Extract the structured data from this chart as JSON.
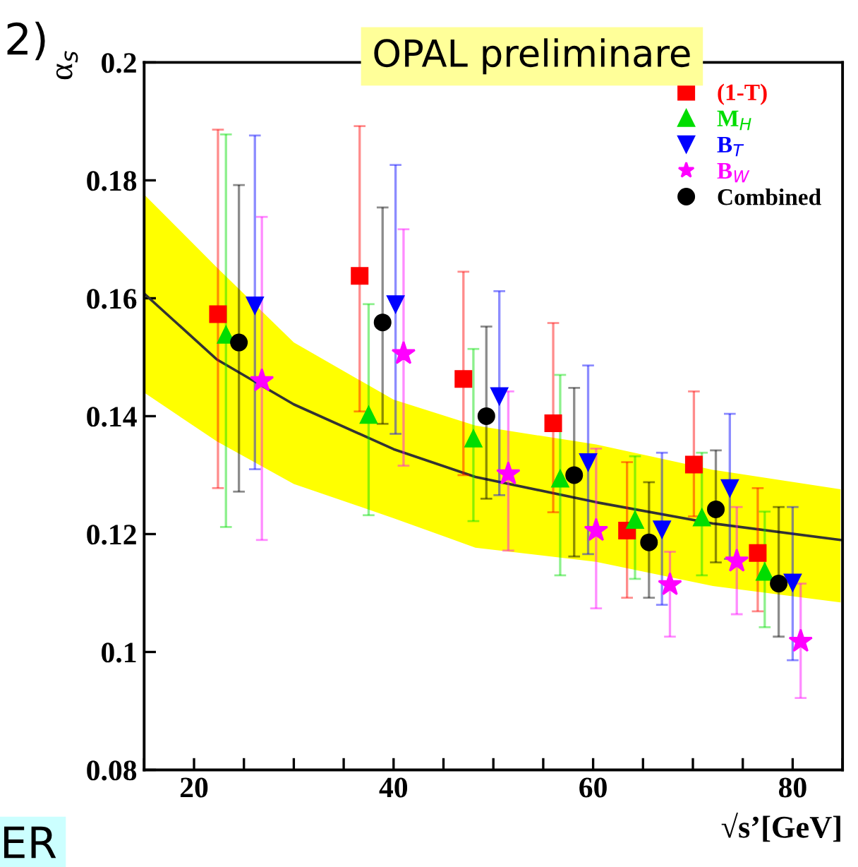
{
  "chart_data": {
    "type": "scatter",
    "title": "OPAL preliminare",
    "xlabel": "√s’[GeV]",
    "ylabel": "α$_{s}$",
    "annotations": [
      "2)",
      "ER"
    ],
    "xlim": [
      15,
      85
    ],
    "ylim": [
      0.08,
      0.2
    ],
    "xticks": [
      {
        "value": 15,
        "label": null
      },
      20,
      {
        "value": 25,
        "label": null
      },
      {
        "value": 30,
        "label": null
      },
      {
        "value": 35,
        "label": null
      },
      40,
      {
        "value": 45,
        "label": null
      },
      {
        "value": 50,
        "label": null
      },
      {
        "value": 55,
        "label": null
      },
      60,
      {
        "value": 65,
        "label": null
      },
      {
        "value": 70,
        "label": null
      },
      {
        "value": 75,
        "label": null
      },
      80,
      {
        "value": 85,
        "label": null
      }
    ],
    "yticks": [
      0.08,
      0.1,
      0.12,
      0.14,
      0.16,
      0.18,
      0.2
    ],
    "grid": false,
    "legend": "top right",
    "series": [
      {
        "type": "line",
        "color": "#333333",
        "marker": "none",
        "x": [
          15,
          22.3,
          30,
          40,
          48.2,
          60.3,
          72,
          84.8
        ],
        "values": [
          0.1608,
          0.1496,
          0.142,
          0.1344,
          0.1297,
          0.1254,
          0.1218,
          0.119
        ],
        "lower": [
          0.144,
          0.1357,
          0.1285,
          0.1227,
          0.1177,
          0.1153,
          0.1112,
          0.1084
        ],
        "upper": [
          0.1776,
          0.1652,
          0.1525,
          0.1428,
          0.1384,
          0.1352,
          0.1309,
          0.1276
        ]
      },
      {
        "name": "(1-T)",
        "color": "#ff0000",
        "marker": "square",
        "x": [
          22.4,
          36.6,
          47.0,
          56.0,
          63.4,
          70.1,
          76.5
        ],
        "values": [
          0.1573,
          0.1638,
          0.1463,
          0.1388,
          0.1206,
          0.1318,
          0.1168
        ],
        "errors": [
          [
            0.1278,
            0.1886
          ],
          [
            0.1408,
            0.1892
          ],
          [
            0.13,
            0.1645
          ],
          [
            0.1237,
            0.1558
          ],
          [
            0.1092,
            0.1322
          ],
          [
            0.123,
            0.1442
          ],
          [
            0.1069,
            0.1278
          ]
        ]
      },
      {
        "name": "M$_{H}$",
        "color": "#00dd00",
        "marker": "triangle",
        "x": [
          23.2,
          37.5,
          48.0,
          56.7,
          64.2,
          70.9,
          77.2
        ],
        "values": [
          0.1538,
          0.1402,
          0.1362,
          0.1294,
          0.1224,
          0.1228,
          0.1136
        ],
        "errors": [
          [
            0.1212,
            0.1878
          ],
          [
            0.1232,
            0.159
          ],
          [
            0.1222,
            0.1514
          ],
          [
            0.113,
            0.147
          ],
          [
            0.1124,
            0.1332
          ],
          [
            0.113,
            0.1338
          ],
          [
            0.1042,
            0.1238
          ]
        ]
      },
      {
        "name": "B$_{T}$",
        "color": "#0000ff",
        "marker": "triangle_down",
        "x": [
          26.1,
          40.2,
          50.6,
          59.5,
          66.9,
          73.7,
          80.0
        ],
        "values": [
          0.1588,
          0.159,
          0.1434,
          0.1322,
          0.1208,
          0.1278,
          0.1118
        ],
        "errors": [
          [
            0.131,
            0.1876
          ],
          [
            0.137,
            0.1826
          ],
          [
            0.1266,
            0.1612
          ],
          [
            0.1166,
            0.1486
          ],
          [
            0.108,
            0.1338
          ],
          [
            0.1158,
            0.1404
          ],
          [
            0.0986,
            0.1246
          ]
        ]
      },
      {
        "name": "B$_{W}$",
        "color": "#ff00ff",
        "marker": "star",
        "x": [
          26.8,
          41.0,
          51.5,
          60.3,
          67.7,
          74.4,
          80.8
        ],
        "values": [
          0.146,
          0.1506,
          0.1302,
          0.1206,
          0.1114,
          0.1154,
          0.1018
        ],
        "errors": [
          [
            0.119,
            0.1738
          ],
          [
            0.1316,
            0.1717
          ],
          [
            0.1172,
            0.1442
          ],
          [
            0.1074,
            0.1345
          ],
          [
            0.1026,
            0.117
          ],
          [
            0.1064,
            0.1246
          ],
          [
            0.0922,
            0.1116
          ]
        ]
      },
      {
        "name": "Combined",
        "color": "#000000",
        "marker": "circle",
        "x": [
          24.5,
          38.9,
          49.3,
          58.1,
          65.6,
          72.3,
          78.6
        ],
        "values": [
          0.1525,
          0.1559,
          0.14,
          0.13,
          0.1186,
          0.1242,
          0.1116
        ],
        "errors": [
          [
            0.1272,
            0.1792
          ],
          [
            0.1387,
            0.1754
          ],
          [
            0.126,
            0.1552
          ],
          [
            0.1162,
            0.1448
          ],
          [
            0.1092,
            0.1288
          ],
          [
            0.1152,
            0.1342
          ],
          [
            0.1026,
            0.1246
          ]
        ]
      }
    ]
  }
}
